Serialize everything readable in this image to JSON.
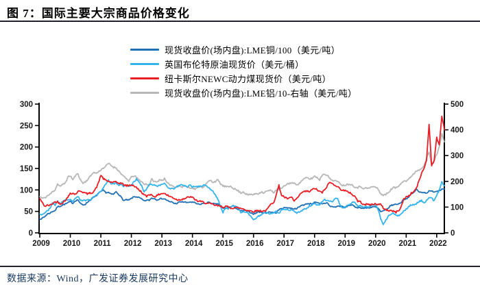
{
  "title": "图 7：国际主要大宗商品价格变化",
  "footer": {
    "source_label": "数据来源：Wind，广发证券发展研究中心"
  },
  "colors": {
    "rule": "#20202b",
    "axis": "#000000",
    "footer_text": "#17375E",
    "copper": "#1F6FB5",
    "brent": "#33B3EC",
    "coal": "#EC1C24",
    "aluminum": "#B6B6B9"
  },
  "chart_data": {
    "type": "line",
    "x_start": "2009-01",
    "x_end": "2022-04",
    "x_unit": "month",
    "x_ticks": [
      "2009",
      "2010",
      "2011",
      "2012",
      "2013",
      "2014",
      "2015",
      "2016",
      "2017",
      "2018",
      "2019",
      "2020",
      "2021",
      "2022"
    ],
    "y_left": {
      "min": 0,
      "max": 300,
      "ticks": [
        0,
        50,
        100,
        150,
        200,
        250,
        300
      ]
    },
    "y_right": {
      "min": 0,
      "max": 500,
      "ticks": [
        0,
        100,
        200,
        300,
        400,
        500
      ]
    },
    "grid": false,
    "legend_position": "top-center",
    "series": [
      {
        "name": "现货收盘价(场内盘):LME铜/100（美元/吨）",
        "axis": "left",
        "color": "#1F6FB5",
        "values": [
          32,
          34,
          38,
          44,
          46,
          50,
          52,
          61,
          62,
          65,
          67,
          70,
          73,
          69,
          75,
          77,
          68,
          65,
          67,
          73,
          77,
          83,
          85,
          92,
          96,
          99,
          94,
          94,
          90,
          90,
          96,
          90,
          83,
          75,
          77,
          76,
          80,
          84,
          84,
          82,
          79,
          74,
          76,
          76,
          81,
          80,
          77,
          79,
          80,
          79,
          76,
          72,
          72,
          68,
          69,
          72,
          72,
          72,
          70,
          72,
          71,
          70,
          67,
          66,
          69,
          68,
          71,
          70,
          68,
          67,
          67,
          64,
          57,
          57,
          59,
          60,
          63,
          58,
          54,
          51,
          52,
          52,
          49,
          47,
          44,
          46,
          49,
          48,
          47,
          46,
          49,
          48,
          47,
          47,
          54,
          57,
          58,
          59,
          58,
          57,
          56,
          57,
          60,
          65,
          65,
          68,
          68,
          68,
          71,
          70,
          68,
          68,
          69,
          70,
          62,
          61,
          60,
          62,
          62,
          61,
          59,
          63,
          65,
          64,
          60,
          59,
          59,
          57,
          58,
          58,
          59,
          61,
          60,
          57,
          49,
          51,
          53,
          58,
          64,
          65,
          67,
          67,
          71,
          78,
          79,
          84,
          90,
          94,
          102,
          95,
          95,
          94,
          93,
          97,
          97,
          96,
          97,
          99,
          102,
          103
        ]
      },
      {
        "name": "英国布伦特原油现货价（美元/桶）",
        "axis": "left",
        "color": "#33B3EC",
        "values": [
          44,
          43,
          47,
          51,
          58,
          69,
          65,
          73,
          68,
          73,
          77,
          75,
          77,
          74,
          79,
          85,
          76,
          75,
          76,
          77,
          78,
          83,
          86,
          92,
          97,
          104,
          115,
          123,
          115,
          114,
          117,
          110,
          112,
          109,
          111,
          108,
          111,
          119,
          125,
          120,
          110,
          95,
          103,
          113,
          113,
          112,
          109,
          110,
          113,
          116,
          109,
          103,
          103,
          103,
          108,
          111,
          112,
          109,
          108,
          111,
          107,
          109,
          108,
          108,
          110,
          112,
          107,
          102,
          97,
          88,
          79,
          62,
          48,
          58,
          56,
          60,
          65,
          62,
          57,
          47,
          48,
          49,
          45,
          38,
          31,
          33,
          39,
          42,
          47,
          48,
          45,
          46,
          47,
          50,
          45,
          54,
          55,
          55,
          52,
          53,
          51,
          47,
          49,
          52,
          56,
          57,
          63,
          64,
          69,
          65,
          66,
          72,
          77,
          75,
          74,
          73,
          79,
          81,
          65,
          57,
          60,
          64,
          67,
          71,
          70,
          63,
          64,
          59,
          62,
          59,
          63,
          66,
          63,
          55,
          32,
          18,
          29,
          40,
          43,
          45,
          41,
          40,
          43,
          50,
          55,
          62,
          65,
          65,
          68,
          73,
          75,
          70,
          75,
          84,
          81,
          74,
          88,
          98,
          118,
          110
        ]
      },
      {
        "name": "纽卡斯尔NEWC动力煤现货价（美元/吨）",
        "axis": "left",
        "color": "#EC1C24",
        "values": [
          80,
          70,
          62,
          64,
          64,
          68,
          72,
          72,
          68,
          70,
          76,
          82,
          93,
          92,
          90,
          96,
          98,
          95,
          92,
          91,
          93,
          95,
          103,
          115,
          135,
          126,
          122,
          120,
          118,
          118,
          118,
          116,
          116,
          112,
          110,
          110,
          112,
          110,
          105,
          100,
          95,
          88,
          85,
          90,
          88,
          85,
          86,
          90,
          92,
          92,
          88,
          85,
          83,
          80,
          77,
          77,
          79,
          80,
          82,
          84,
          82,
          78,
          74,
          73,
          72,
          70,
          68,
          68,
          66,
          64,
          63,
          62,
          60,
          62,
          60,
          58,
          58,
          59,
          58,
          57,
          56,
          53,
          52,
          51,
          50,
          51,
          52,
          51,
          51,
          52,
          60,
          68,
          72,
          90,
          110,
          88,
          84,
          80,
          80,
          83,
          74,
          80,
          86,
          94,
          96,
          97,
          96,
          100,
          104,
          100,
          96,
          94,
          100,
          110,
          118,
          114,
          112,
          108,
          102,
          100,
          98,
          95,
          94,
          88,
          84,
          74,
          72,
          68,
          66,
          66,
          66,
          66,
          68,
          66,
          66,
          58,
          54,
          52,
          52,
          50,
          48,
          52,
          60,
          78,
          84,
          86,
          92,
          96,
          104,
          120,
          138,
          150,
          170,
          253,
          158,
          168,
          222,
          205,
          272,
          242
        ]
      },
      {
        "name": "现货收盘价(场内盘):LME铝/10-右轴（美元/吨）",
        "axis": "right",
        "color": "#B6B6B9",
        "values": [
          141,
          134,
          136,
          144,
          149,
          160,
          167,
          190,
          181,
          187,
          194,
          216,
          222,
          206,
          222,
          230,
          205,
          193,
          199,
          209,
          221,
          235,
          231,
          236,
          245,
          252,
          259,
          270,
          262,
          255,
          253,
          240,
          230,
          218,
          210,
          202,
          216,
          222,
          215,
          205,
          200,
          188,
          190,
          184,
          208,
          200,
          196,
          207,
          204,
          210,
          193,
          188,
          184,
          178,
          179,
          182,
          177,
          184,
          177,
          176,
          174,
          170,
          174,
          182,
          177,
          185,
          197,
          204,
          197,
          200,
          205,
          191,
          182,
          180,
          177,
          182,
          174,
          168,
          163,
          155,
          160,
          151,
          147,
          150,
          148,
          153,
          152,
          160,
          155,
          161,
          164,
          164,
          157,
          167,
          173,
          172,
          180,
          189,
          192,
          195,
          191,
          189,
          191,
          204,
          210,
          214,
          209,
          212,
          220,
          215,
          206,
          225,
          229,
          224,
          210,
          204,
          203,
          198,
          193,
          184,
          186,
          188,
          190,
          184,
          178,
          176,
          180,
          174,
          174,
          172,
          177,
          179,
          178,
          169,
          152,
          146,
          149,
          157,
          168,
          176,
          175,
          181,
          195,
          202,
          201,
          208,
          220,
          230,
          241,
          244,
          252,
          262,
          288,
          315,
          262,
          280,
          305,
          332,
          388,
          352
        ]
      }
    ]
  }
}
